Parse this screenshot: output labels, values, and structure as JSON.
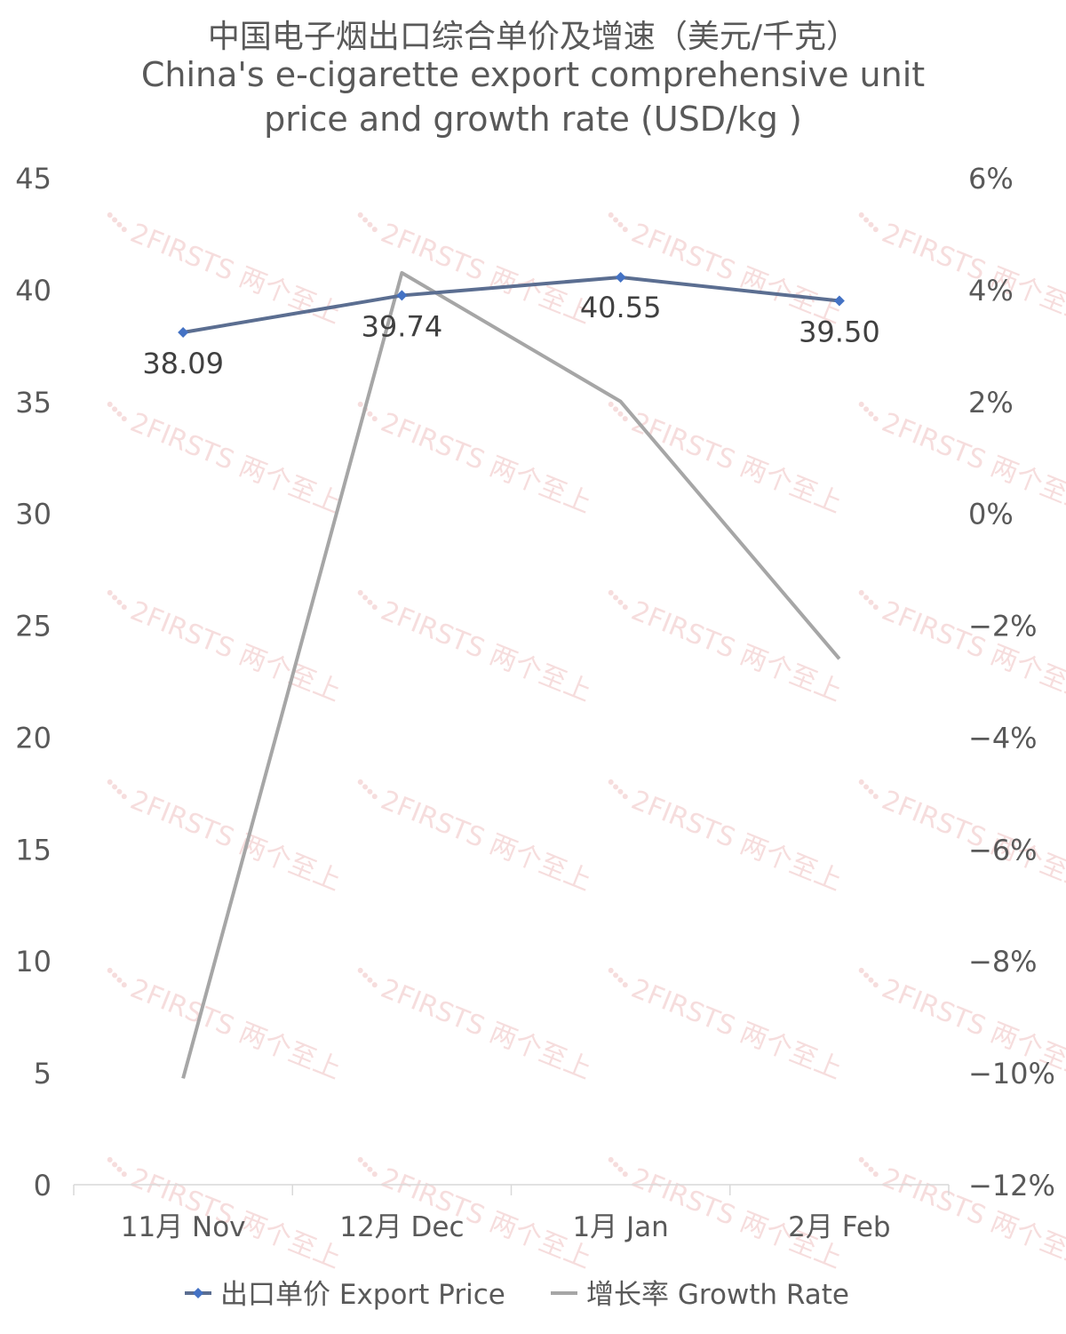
{
  "chart_data": {
    "type": "line",
    "title_lines": [
      "中国电子烟出口综合单价及增速（美元/千克）",
      "China's e-cigarette export comprehensive unit",
      "price and growth rate (USD/kg )"
    ],
    "categories": [
      "11月 Nov",
      "12月 Dec",
      "1月 Jan",
      "2月 Feb"
    ],
    "series": [
      {
        "name": "出口单价 Export Price",
        "axis": "left",
        "values": [
          38.09,
          39.74,
          40.55,
          39.5
        ],
        "labels": [
          "38.09",
          "39.74",
          "40.55",
          "39.50"
        ],
        "color": "#4472C4",
        "line_color": "#5B6E91",
        "marker": "diamond"
      },
      {
        "name": "增长率 Growth Rate",
        "axis": "right",
        "values": [
          -10.1,
          4.3,
          2.0,
          -2.6
        ],
        "color": "#A6A6A6",
        "marker": "none"
      }
    ],
    "y_left": {
      "min": 0,
      "max": 45,
      "ticks": [
        "0",
        "5",
        "10",
        "15",
        "20",
        "25",
        "30",
        "35",
        "40",
        "45"
      ]
    },
    "y_right": {
      "min": -12,
      "max": 6,
      "ticks": [
        "−12%",
        "−10%",
        "−8%",
        "−6%",
        "−4%",
        "−2%",
        "0%",
        "2%",
        "4%",
        "6%"
      ]
    },
    "grid": false,
    "legend_position": "bottom",
    "watermark": "2FIRSTS 两个至上"
  }
}
